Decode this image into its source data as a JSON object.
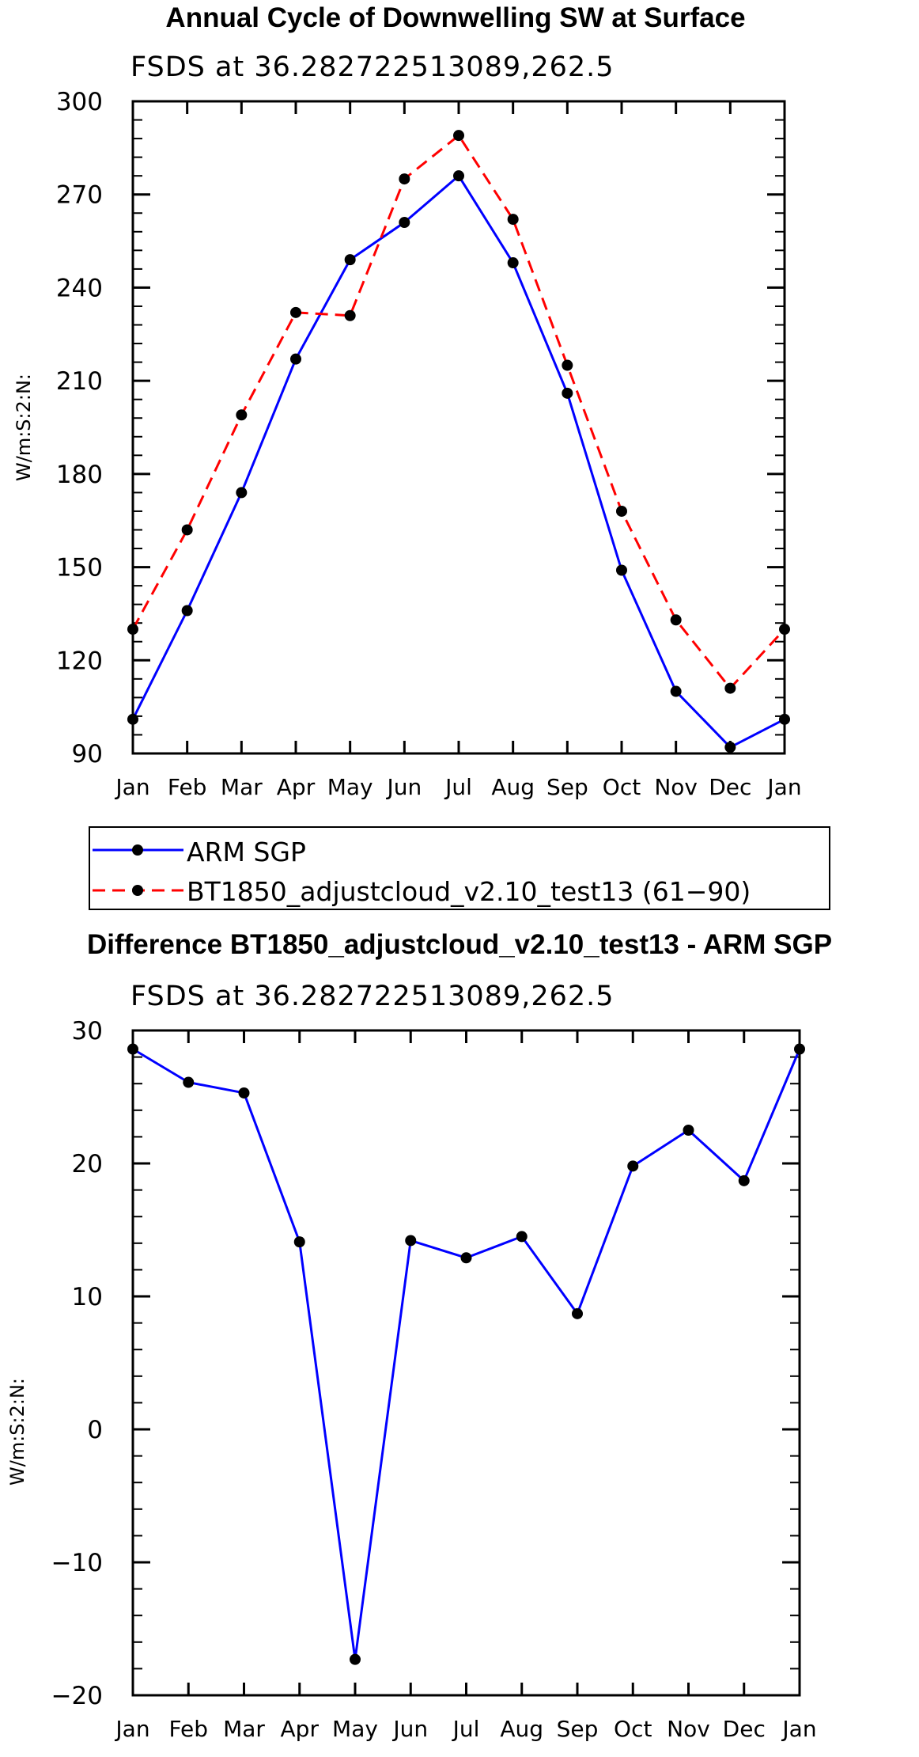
{
  "chart_data": [
    {
      "type": "line",
      "title": "Annual Cycle of Downwelling SW at Surface",
      "subtitle": "FSDS at 36.282722513089,262.5",
      "ylabel": "W/m:S:2:N:",
      "xlabel": "",
      "categories": [
        "Jan",
        "Feb",
        "Mar",
        "Apr",
        "May",
        "Jun",
        "Jul",
        "Aug",
        "Sep",
        "Oct",
        "Nov",
        "Dec",
        "Jan"
      ],
      "ylim": [
        90,
        300
      ],
      "yticks": [
        90,
        120,
        150,
        180,
        210,
        240,
        270,
        300
      ],
      "series": [
        {
          "name": "ARM SGP",
          "color": "#0000ff",
          "dash": "solid",
          "values": [
            101,
            136,
            174,
            217,
            249,
            261,
            276,
            248,
            206,
            149,
            110,
            92,
            101
          ]
        },
        {
          "name": "BT1850_adjustcloud_v2.10_test13 (61−90)",
          "color": "#ff0000",
          "dash": "dashed",
          "values": [
            130,
            162,
            199,
            232,
            231,
            275,
            289,
            262,
            215,
            168,
            133,
            111,
            130
          ]
        }
      ],
      "legend": "below"
    },
    {
      "type": "line",
      "title": "Difference BT1850_adjustcloud_v2.10_test13 - ARM SGP",
      "subtitle": "FSDS at 36.282722513089,262.5",
      "ylabel": "W/m:S:2:N:",
      "xlabel": "",
      "categories": [
        "Jan",
        "Feb",
        "Mar",
        "Apr",
        "May",
        "Jun",
        "Jul",
        "Aug",
        "Sep",
        "Oct",
        "Nov",
        "Dec",
        "Jan"
      ],
      "ylim": [
        -20,
        30
      ],
      "yticks": [
        -20,
        -10,
        0,
        10,
        20,
        30
      ],
      "series": [
        {
          "name": "Difference",
          "color": "#0000ff",
          "dash": "solid",
          "values": [
            28.6,
            26.1,
            25.3,
            14.1,
            -17.3,
            14.2,
            12.9,
            14.5,
            8.7,
            19.8,
            22.5,
            18.7,
            28.6
          ]
        }
      ]
    }
  ]
}
